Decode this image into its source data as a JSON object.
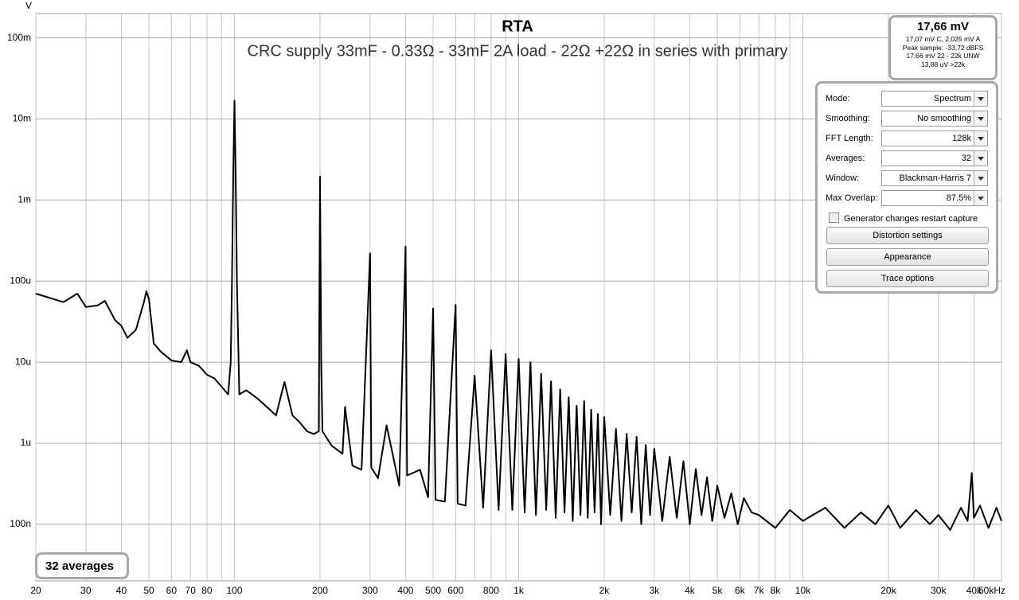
{
  "chart_data": {
    "type": "line",
    "title": "RTA",
    "subtitle": "CRC supply 33mF - 0.33Ω - 33mF 2A load - 22Ω +22Ω in series with primary",
    "y_label": "V",
    "xscale": "log",
    "yscale": "log",
    "grid": true,
    "color": "#000000",
    "xlim": [
      20,
      50000
    ],
    "ylim": [
      2e-08,
      0.2
    ],
    "xticks": [
      20,
      30,
      40,
      50,
      60,
      70,
      80,
      100,
      200,
      300,
      400,
      500,
      600,
      800,
      {
        "value": 1000,
        "label": "1k"
      },
      {
        "value": 2000,
        "label": "2k"
      },
      {
        "value": 3000,
        "label": "3k"
      },
      {
        "value": 4000,
        "label": "4k"
      },
      {
        "value": 5000,
        "label": "5k"
      },
      {
        "value": 6000,
        "label": "6k"
      },
      {
        "value": 7000,
        "label": "7k"
      },
      {
        "value": 8000,
        "label": "8k"
      },
      {
        "value": 10000,
        "label": "10k"
      },
      {
        "value": 20000,
        "label": "20k"
      },
      {
        "value": 30000,
        "label": "30k"
      },
      {
        "value": 40000,
        "label": "40k"
      },
      {
        "value": 50000,
        "label": "50kHz"
      }
    ],
    "xminor": [
      90,
      700,
      900,
      9000
    ],
    "yticks": [
      {
        "value": 1e-07,
        "label": "100n"
      },
      {
        "value": 1e-06,
        "label": "1u"
      },
      {
        "value": 1e-05,
        "label": "10u"
      },
      {
        "value": 0.0001,
        "label": "100u"
      },
      {
        "value": 0.001,
        "label": "1m"
      },
      {
        "value": 0.01,
        "label": "10m"
      },
      {
        "value": 0.1,
        "label": "100m"
      }
    ],
    "x": [
      20,
      25,
      28,
      30,
      33,
      35,
      38,
      40,
      42,
      45,
      48,
      49,
      50,
      52,
      55,
      60,
      65,
      68,
      70,
      75,
      80,
      85,
      90,
      95,
      97,
      98,
      99,
      100,
      101,
      102,
      104,
      110,
      120,
      130,
      140,
      150,
      160,
      170,
      180,
      190,
      198,
      200,
      202,
      204,
      220,
      240,
      245,
      260,
      280,
      300,
      303,
      320,
      343,
      380,
      400,
      405,
      450,
      480,
      500,
      510,
      550,
      600,
      610,
      650,
      700,
      750,
      800,
      850,
      900,
      950,
      1000,
      1050,
      1100,
      1150,
      1200,
      1250,
      1300,
      1350,
      1400,
      1450,
      1500,
      1550,
      1600,
      1650,
      1700,
      1750,
      1800,
      1850,
      1900,
      1950,
      2000,
      2100,
      2200,
      2300,
      2400,
      2500,
      2600,
      2700,
      2800,
      2900,
      3000,
      3200,
      3400,
      3600,
      3800,
      4000,
      4200,
      4400,
      4600,
      4800,
      5000,
      5300,
      5600,
      5900,
      6200,
      6600,
      7000,
      8000,
      9000,
      10000,
      12000,
      14000,
      16000,
      18000,
      20000,
      22000,
      25000,
      28000,
      30000,
      33000,
      36000,
      38000,
      39300,
      40000,
      42000,
      45000,
      48000,
      50000
    ],
    "values": [
      7e-05,
      5.5e-05,
      7e-05,
      4.8e-05,
      5e-05,
      5.7e-05,
      3.3e-05,
      2.8e-05,
      2e-05,
      2.5e-05,
      5.5e-05,
      7.5e-05,
      6e-05,
      1.7e-05,
      1.35e-05,
      1.05e-05,
      1e-05,
      1.4e-05,
      1e-05,
      9e-06,
      7e-06,
      6.3e-06,
      5e-06,
      4e-06,
      1e-05,
      0.0001,
      0.002,
      0.0168,
      0.002,
      0.0001,
      4e-06,
      4.5e-06,
      3.6e-06,
      2.8e-06,
      2.2e-06,
      5.7e-06,
      2.2e-06,
      1.8e-06,
      1.4e-06,
      1.3e-06,
      1.4e-06,
      0.00195,
      1e-05,
      1.4e-06,
      9.3e-07,
      7.4e-07,
      2.8e-06,
      5.3e-07,
      4.7e-07,
      0.00022,
      5e-07,
      3.7e-07,
      1.66e-06,
      3e-07,
      0.000267,
      4e-07,
      4.7e-07,
      2.15e-07,
      4.6e-05,
      2e-07,
      1.9e-07,
      5.1e-05,
      1.8e-07,
      1.7e-07,
      6.8e-06,
      1.6e-07,
      1.4e-05,
      1.5e-07,
      1.26e-05,
      1.5e-07,
      1.1e-05,
      1.4e-07,
      1e-05,
      1.3e-07,
      7.2e-06,
      1.5e-07,
      5.8e-06,
      1.2e-07,
      4.6e-06,
      1.4e-07,
      3.7e-06,
      1.1e-07,
      2.9e-06,
      1.3e-07,
      3.3e-06,
      1.2e-07,
      2.6e-06,
      1.4e-07,
      2.3e-06,
      1e-07,
      2.1e-06,
      1.3e-07,
      1.5e-06,
      1.1e-07,
      1.3e-06,
      1.4e-07,
      1.2e-06,
      1e-07,
      9.5e-07,
      1.3e-07,
      8.5e-07,
      1.1e-07,
      6.8e-07,
      1.2e-07,
      6e-07,
      1e-07,
      4.8e-07,
      1.3e-07,
      3.8e-07,
      1.1e-07,
      3e-07,
      1.2e-07,
      2.4e-07,
      1e-07,
      2.1e-07,
      1.4e-07,
      1.3e-07,
      9e-08,
      1.5e-07,
      1.1e-07,
      1.6e-07,
      9e-08,
      1.4e-07,
      1e-07,
      1.7e-07,
      9e-08,
      1.5e-07,
      1e-07,
      1.3e-07,
      8.5e-08,
      1.6e-07,
      1.1e-07,
      4.3e-07,
      1.2e-07,
      1.7e-07,
      9e-08,
      1.6e-07,
      1.1e-07
    ]
  },
  "readout": {
    "main": "17,66 mV",
    "lines": [
      "17,07 mV C, 2,025 mV A",
      "Peak sample: -33,72 dBFS",
      "17,66 mV 22 - 22k UNW",
      "13,88 uV >22k"
    ]
  },
  "controls": {
    "rows": [
      {
        "label": "Mode:",
        "value": "Spectrum"
      },
      {
        "label": "Smoothing:",
        "value": "No  smoothing"
      },
      {
        "label": "FFT Length:",
        "value": "128k"
      },
      {
        "label": "Averages:",
        "value": "32"
      },
      {
        "label": "Window:",
        "value": "Blackman-Harris 7"
      },
      {
        "label": "Max Overlap:",
        "value": "87.5%"
      }
    ],
    "checkbox": "Generator changes restart capture",
    "buttons": [
      "Distortion settings",
      "Appearance",
      "Trace options"
    ]
  },
  "status": "32 averages"
}
